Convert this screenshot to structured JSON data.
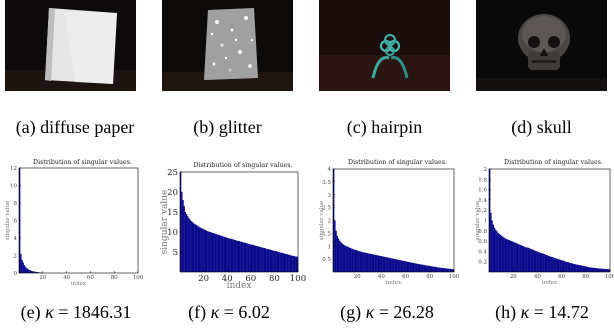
{
  "photos": [
    {
      "caption": "(a) diffuse paper"
    },
    {
      "caption": "(b) glitter"
    },
    {
      "caption": "(c) hairpin"
    },
    {
      "caption": "(d) skull"
    }
  ],
  "plot_captions": [
    {
      "label": "(e)",
      "kappa_symbol": "κ",
      "equals": "=",
      "value": "1846.31"
    },
    {
      "label": "(f)",
      "kappa_symbol": "κ",
      "equals": "=",
      "value": "6.02"
    },
    {
      "label": "(g)",
      "kappa_symbol": "κ",
      "equals": "=",
      "value": "26.28"
    },
    {
      "label": "(h)",
      "kappa_symbol": "κ",
      "equals": "=",
      "value": "14.72"
    }
  ],
  "colors": {
    "bar_fill": "#0a0a8c",
    "bar_edge": "#000000"
  },
  "chart_data": [
    {
      "type": "bar",
      "title": "Distribution of singular values.",
      "xlabel": "index",
      "ylabel": "singular value",
      "xlim": [
        0,
        100
      ],
      "ylim": [
        0,
        12
      ],
      "xticks": [
        "20",
        "40",
        "60",
        "80",
        "100"
      ],
      "yticks": [
        "0",
        "2",
        "4",
        "6",
        "8",
        "10",
        "12"
      ],
      "series": [
        {
          "values": [
            12,
            2.2,
            1.5,
            1.2,
            0.9,
            0.7,
            0.55,
            0.45,
            0.35,
            0.3,
            0.25,
            0.2,
            0.18,
            0.15,
            0.12,
            0.1,
            0.08,
            0.06,
            0.05,
            0.04
          ]
        }
      ]
    },
    {
      "type": "bar",
      "title": "Distribution of singular values.",
      "xlabel": "index",
      "ylabel": "singular value",
      "xlim": [
        0,
        100
      ],
      "ylim": [
        0,
        25
      ],
      "xticks": [
        "20",
        "40",
        "60",
        "80",
        "100"
      ],
      "yticks": [
        "5",
        "10",
        "15",
        "20",
        "25"
      ],
      "series": [
        {
          "values": [
            25,
            20,
            18,
            16.5,
            15,
            14.5,
            14,
            13.5,
            13.1,
            12.7,
            12.5,
            12.2,
            12.0,
            11.8,
            11.6,
            11.4,
            11.2,
            11.1,
            10.9,
            10.8,
            10.6,
            10.5,
            10.3,
            10.2,
            10.1,
            10.0,
            9.9,
            9.8,
            9.7,
            9.6,
            9.5,
            9.4,
            9.3,
            9.2,
            9.1,
            9.0,
            8.9,
            8.8,
            8.7,
            8.6,
            8.5,
            8.4,
            8.35,
            8.3,
            8.2,
            8.1,
            8.0,
            7.9,
            7.8,
            7.75,
            7.7,
            7.6,
            7.5,
            7.4,
            7.35,
            7.3,
            7.2,
            7.1,
            7.0,
            6.9,
            6.85,
            6.8,
            6.7,
            6.6,
            6.5,
            6.45,
            6.4,
            6.3,
            6.2,
            6.1,
            6.05,
            6.0,
            5.9,
            5.8,
            5.7,
            5.65,
            5.6,
            5.5,
            5.4,
            5.3,
            5.25,
            5.2,
            5.1,
            5.0,
            4.9,
            4.85,
            4.8,
            4.7,
            4.6,
            4.5,
            4.45,
            4.4,
            4.3,
            4.2,
            4.1,
            4.05,
            4.0,
            3.9,
            3.85,
            3.8
          ]
        }
      ]
    },
    {
      "type": "bar",
      "title": "Distribution of singular values.",
      "xlabel": "index",
      "ylabel": "singular value",
      "xlim": [
        0,
        100
      ],
      "ylim": [
        0,
        4
      ],
      "xticks": [
        "20",
        "40",
        "60",
        "80",
        "100"
      ],
      "yticks": [
        "0.5",
        "1",
        "1.5",
        "2",
        "2.5",
        "3",
        "3.5",
        "4"
      ],
      "series": [
        {
          "values": [
            4.0,
            2.0,
            1.6,
            1.4,
            1.3,
            1.22,
            1.16,
            1.11,
            1.07,
            1.04,
            1.01,
            0.99,
            0.97,
            0.95,
            0.93,
            0.91,
            0.89,
            0.87,
            0.86,
            0.84,
            0.83,
            0.81,
            0.8,
            0.79,
            0.77,
            0.76,
            0.75,
            0.74,
            0.73,
            0.72,
            0.71,
            0.7,
            0.69,
            0.68,
            0.67,
            0.66,
            0.65,
            0.64,
            0.63,
            0.62,
            0.61,
            0.6,
            0.59,
            0.58,
            0.57,
            0.56,
            0.55,
            0.54,
            0.53,
            0.52,
            0.51,
            0.5,
            0.49,
            0.48,
            0.47,
            0.46,
            0.45,
            0.44,
            0.43,
            0.42,
            0.41,
            0.4,
            0.39,
            0.38,
            0.37,
            0.36,
            0.35,
            0.34,
            0.33,
            0.32,
            0.31,
            0.3,
            0.295,
            0.29,
            0.28,
            0.27,
            0.26,
            0.25,
            0.245,
            0.24,
            0.23,
            0.22,
            0.21,
            0.205,
            0.2,
            0.19,
            0.18,
            0.175,
            0.17,
            0.16,
            0.155,
            0.15,
            0.145,
            0.14,
            0.135,
            0.13,
            0.125,
            0.12,
            0.115,
            0.11
          ]
        }
      ]
    },
    {
      "type": "bar",
      "title": "Distribution of singular values.",
      "xlabel": "index",
      "ylabel": "singular value",
      "xlim": [
        0,
        100
      ],
      "ylim": [
        0,
        2
      ],
      "xticks": [
        "20",
        "40",
        "60",
        "80",
        "100"
      ],
      "yticks": [
        "0.2",
        "0.4",
        "0.6",
        "0.8",
        "1",
        "1.2",
        "1.4",
        "1.6",
        "1.8",
        "2"
      ],
      "series": [
        {
          "values": [
            2.0,
            1.15,
            1.0,
            0.92,
            0.86,
            0.82,
            0.79,
            0.76,
            0.74,
            0.72,
            0.7,
            0.68,
            0.67,
            0.65,
            0.64,
            0.63,
            0.62,
            0.61,
            0.6,
            0.59,
            0.58,
            0.57,
            0.56,
            0.55,
            0.54,
            0.53,
            0.52,
            0.51,
            0.5,
            0.49,
            0.48,
            0.475,
            0.47,
            0.46,
            0.45,
            0.44,
            0.43,
            0.42,
            0.41,
            0.4,
            0.39,
            0.38,
            0.37,
            0.365,
            0.36,
            0.35,
            0.34,
            0.33,
            0.32,
            0.31,
            0.3,
            0.295,
            0.29,
            0.28,
            0.27,
            0.26,
            0.255,
            0.25,
            0.24,
            0.23,
            0.225,
            0.22,
            0.21,
            0.2,
            0.195,
            0.19,
            0.18,
            0.175,
            0.17,
            0.16,
            0.155,
            0.15,
            0.145,
            0.14,
            0.135,
            0.13,
            0.125,
            0.12,
            0.115,
            0.11,
            0.105,
            0.1,
            0.095,
            0.09,
            0.087,
            0.084,
            0.081,
            0.078,
            0.075,
            0.072,
            0.07,
            0.068,
            0.066,
            0.064,
            0.062,
            0.06,
            0.058,
            0.056,
            0.055,
            0.054
          ]
        }
      ]
    }
  ]
}
